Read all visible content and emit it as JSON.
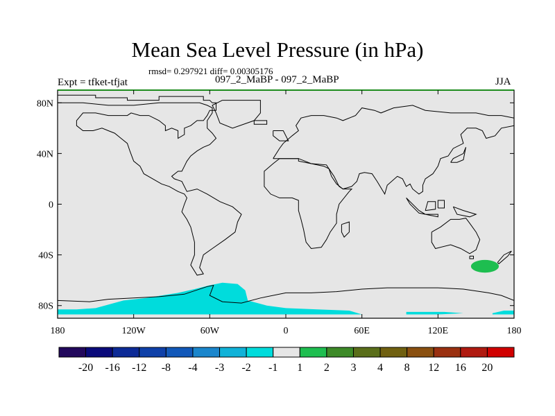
{
  "figure": {
    "title": "Mean Sea Level Pressure (in hPa)",
    "stats_line": "rmsd= 0.297921 diff= 0.00305176",
    "subtitle": "097_2_MaBP - 097_2_MaBP",
    "left_label": "Expt = tfket-tfjat",
    "right_label": "JJA"
  },
  "map": {
    "projection": "cylindrical equidistant",
    "lon_range": [
      -180,
      180
    ],
    "lat_range": [
      -90,
      90
    ],
    "background_color": "#e6e6e6",
    "coastline_color": "#000000",
    "frame_top_color": "#1e8c1e",
    "x_ticks": [
      {
        "value": -180,
        "label": "180"
      },
      {
        "value": -120,
        "label": "120W"
      },
      {
        "value": -60,
        "label": "60W"
      },
      {
        "value": 0,
        "label": "0"
      },
      {
        "value": 60,
        "label": "60E"
      },
      {
        "value": 120,
        "label": "120E"
      },
      {
        "value": 180,
        "label": "180"
      }
    ],
    "y_ticks": [
      {
        "value": 80,
        "label": "80N"
      },
      {
        "value": 40,
        "label": "40N"
      },
      {
        "value": 0,
        "label": "0"
      },
      {
        "value": -40,
        "label": "40S"
      },
      {
        "value": -80,
        "label": "80S"
      }
    ],
    "anomaly_regions": [
      {
        "name": "antarctic-low",
        "color": "#00dcdc",
        "class": "-2 to -1",
        "points": [
          [
            -180,
            -83
          ],
          [
            -165,
            -83
          ],
          [
            -150,
            -82
          ],
          [
            -128,
            -76
          ],
          [
            -110,
            -74
          ],
          [
            -85,
            -70
          ],
          [
            -72,
            -67
          ],
          [
            -60,
            -64
          ],
          [
            -50,
            -62
          ],
          [
            -38,
            -63
          ],
          [
            -32,
            -68
          ],
          [
            -30,
            -76
          ],
          [
            -15,
            -80
          ],
          [
            0,
            -82
          ],
          [
            25,
            -83
          ],
          [
            50,
            -84
          ],
          [
            60,
            -87
          ],
          [
            -180,
            -87
          ]
        ]
      },
      {
        "name": "antarctic-low-east",
        "color": "#00dcdc",
        "class": "-2 to -1",
        "points": [
          [
            95,
            -85
          ],
          [
            125,
            -85
          ],
          [
            140,
            -86
          ],
          [
            120,
            -87
          ],
          [
            95,
            -87
          ]
        ]
      },
      {
        "name": "antarctic-low-edge",
        "color": "#00dcdc",
        "class": "-2 to -1",
        "points": [
          [
            163,
            -86
          ],
          [
            172,
            -84
          ],
          [
            180,
            -84
          ],
          [
            180,
            -87
          ],
          [
            163,
            -87
          ]
        ]
      },
      {
        "name": "south-pacific-high",
        "color": "#1ebe50",
        "class": "1 to 2",
        "center": [
          157,
          -49
        ],
        "radius": [
          11,
          5
        ]
      }
    ],
    "coastlines": [
      [
        [
          -180,
          86
        ],
        [
          -150,
          86
        ],
        [
          -150,
          84
        ],
        [
          -125,
          84
        ],
        [
          -125,
          82
        ],
        [
          -100,
          82
        ],
        [
          -100,
          85
        ],
        [
          -65,
          85
        ],
        [
          -65,
          82
        ],
        [
          -60,
          82
        ],
        [
          -58,
          80
        ],
        [
          -55,
          80
        ],
        [
          -55,
          74
        ],
        [
          -60,
          74
        ],
        [
          -62,
          70
        ],
        [
          -65,
          66
        ],
        [
          -70,
          66
        ],
        [
          -75,
          62
        ],
        [
          -80,
          60
        ],
        [
          -80,
          55
        ],
        [
          -85,
          52
        ],
        [
          -85,
          58
        ],
        [
          -90,
          60
        ],
        [
          -95,
          58
        ],
        [
          -95,
          62
        ],
        [
          -100,
          66
        ],
        [
          -108,
          70
        ],
        [
          -115,
          70
        ],
        [
          -122,
          72
        ],
        [
          -125,
          70
        ],
        [
          -130,
          70
        ],
        [
          -140,
          70
        ],
        [
          -150,
          72
        ],
        [
          -160,
          72
        ],
        [
          -165,
          66
        ],
        [
          -165,
          62
        ],
        [
          -160,
          58
        ],
        [
          -152,
          58
        ],
        [
          -145,
          60
        ],
        [
          -140,
          58
        ],
        [
          -135,
          56
        ],
        [
          -130,
          52
        ],
        [
          -125,
          48
        ],
        [
          -123,
          42
        ],
        [
          -120,
          34
        ],
        [
          -115,
          30
        ],
        [
          -112,
          24
        ],
        [
          -105,
          20
        ],
        [
          -98,
          16
        ],
        [
          -92,
          14
        ],
        [
          -85,
          10
        ],
        [
          -80,
          8
        ],
        [
          -78,
          5
        ],
        [
          -80,
          0
        ],
        [
          -82,
          -6
        ],
        [
          -78,
          -12
        ],
        [
          -75,
          -18
        ],
        [
          -72,
          -30
        ],
        [
          -72,
          -40
        ],
        [
          -75,
          -48
        ],
        [
          -70,
          -56
        ],
        [
          -65,
          -55
        ],
        [
          -68,
          -50
        ],
        [
          -65,
          -40
        ],
        [
          -58,
          -35
        ],
        [
          -48,
          -28
        ],
        [
          -40,
          -22
        ],
        [
          -38,
          -14
        ],
        [
          -35,
          -8
        ],
        [
          -42,
          -2
        ],
        [
          -52,
          2
        ],
        [
          -62,
          8
        ],
        [
          -70,
          12
        ],
        [
          -78,
          10
        ],
        [
          -82,
          18
        ],
        [
          -88,
          20
        ],
        [
          -90,
          22
        ],
        [
          -85,
          26
        ],
        [
          -82,
          26
        ],
        [
          -80,
          30
        ],
        [
          -78,
          34
        ],
        [
          -75,
          38
        ],
        [
          -70,
          42
        ],
        [
          -65,
          45
        ],
        [
          -60,
          47
        ],
        [
          -55,
          52
        ],
        [
          -58,
          56
        ],
        [
          -62,
          60
        ],
        [
          -62,
          66
        ],
        [
          -58,
          72
        ],
        [
          -58,
          76
        ],
        [
          -62,
          78
        ],
        [
          -68,
          80
        ],
        [
          -100,
          80
        ],
        [
          -120,
          78
        ],
        [
          -140,
          78
        ],
        [
          -160,
          80
        ],
        [
          -180,
          80
        ]
      ],
      [
        [
          -50,
          82
        ],
        [
          -20,
          82
        ],
        [
          -20,
          72
        ],
        [
          -25,
          66
        ],
        [
          -42,
          60
        ],
        [
          -52,
          64
        ],
        [
          -55,
          72
        ],
        [
          -58,
          78
        ],
        [
          -50,
          82
        ]
      ],
      [
        [
          -25,
          66
        ],
        [
          -15,
          66
        ],
        [
          -15,
          63
        ],
        [
          -25,
          63
        ],
        [
          -25,
          66
        ]
      ],
      [
        [
          -10,
          58
        ],
        [
          -2,
          58
        ],
        [
          2,
          50
        ],
        [
          -5,
          50
        ],
        [
          -10,
          54
        ],
        [
          -10,
          58
        ]
      ],
      [
        [
          -10,
          36
        ],
        [
          -5,
          44
        ],
        [
          -2,
          48
        ],
        [
          5,
          54
        ],
        [
          10,
          58
        ],
        [
          8,
          62
        ],
        [
          12,
          68
        ],
        [
          20,
          70
        ],
        [
          30,
          70
        ],
        [
          40,
          68
        ],
        [
          45,
          66
        ],
        [
          55,
          70
        ],
        [
          60,
          76
        ],
        [
          70,
          74
        ],
        [
          75,
          72
        ],
        [
          85,
          76
        ],
        [
          100,
          78
        ],
        [
          110,
          74
        ],
        [
          130,
          72
        ],
        [
          150,
          72
        ],
        [
          160,
          70
        ],
        [
          170,
          70
        ],
        [
          180,
          68
        ],
        [
          180,
          62
        ],
        [
          170,
          60
        ],
        [
          165,
          54
        ],
        [
          158,
          52
        ],
        [
          155,
          58
        ],
        [
          150,
          60
        ],
        [
          143,
          60
        ],
        [
          138,
          55
        ],
        [
          140,
          48
        ],
        [
          132,
          44
        ],
        [
          128,
          38
        ],
        [
          122,
          36
        ],
        [
          120,
          30
        ],
        [
          116,
          24
        ],
        [
          110,
          20
        ],
        [
          108,
          15
        ],
        [
          108,
          10
        ],
        [
          105,
          8
        ],
        [
          100,
          12
        ],
        [
          98,
          16
        ],
        [
          95,
          14
        ],
        [
          92,
          20
        ],
        [
          88,
          22
        ],
        [
          80,
          15
        ],
        [
          78,
          8
        ],
        [
          72,
          18
        ],
        [
          68,
          24
        ],
        [
          62,
          25
        ],
        [
          58,
          24
        ],
        [
          56,
          18
        ],
        [
          52,
          14
        ],
        [
          45,
          12
        ],
        [
          42,
          14
        ],
        [
          38,
          22
        ],
        [
          34,
          28
        ],
        [
          30,
          30
        ],
        [
          20,
          32
        ],
        [
          10,
          34
        ],
        [
          10,
          36
        ],
        [
          0,
          36
        ],
        [
          -10,
          36
        ]
      ],
      [
        [
          -17,
          20
        ],
        [
          -17,
          14
        ],
        [
          -12,
          8
        ],
        [
          -5,
          5
        ],
        [
          5,
          5
        ],
        [
          10,
          3
        ],
        [
          10,
          -5
        ],
        [
          12,
          -12
        ],
        [
          14,
          -20
        ],
        [
          16,
          -30
        ],
        [
          20,
          -35
        ],
        [
          28,
          -34
        ],
        [
          32,
          -28
        ],
        [
          35,
          -22
        ],
        [
          40,
          -15
        ],
        [
          40,
          -8
        ],
        [
          42,
          0
        ],
        [
          50,
          10
        ],
        [
          52,
          12
        ],
        [
          45,
          12
        ],
        [
          40,
          16
        ],
        [
          36,
          22
        ],
        [
          34,
          28
        ],
        [
          32,
          31
        ],
        [
          20,
          32
        ],
        [
          10,
          36
        ],
        [
          -5,
          36
        ],
        [
          -10,
          32
        ],
        [
          -17,
          26
        ],
        [
          -17,
          20
        ]
      ],
      [
        [
          44,
          -16
        ],
        [
          50,
          -14
        ],
        [
          50,
          -22
        ],
        [
          46,
          -26
        ],
        [
          44,
          -22
        ],
        [
          44,
          -16
        ]
      ],
      [
        [
          95,
          5
        ],
        [
          105,
          -5
        ],
        [
          110,
          -8
        ],
        [
          120,
          -8
        ],
        [
          120,
          -10
        ],
        [
          105,
          -7
        ],
        [
          98,
          0
        ],
        [
          95,
          5
        ]
      ],
      [
        [
          110,
          -5
        ],
        [
          118,
          -4
        ],
        [
          118,
          2
        ],
        [
          112,
          2
        ],
        [
          110,
          -5
        ]
      ],
      [
        [
          120,
          -3
        ],
        [
          125,
          -3
        ],
        [
          125,
          3
        ],
        [
          120,
          3
        ],
        [
          120,
          -3
        ]
      ],
      [
        [
          132,
          -2
        ],
        [
          140,
          -5
        ],
        [
          150,
          -8
        ],
        [
          145,
          -10
        ],
        [
          135,
          -8
        ],
        [
          132,
          -2
        ]
      ],
      [
        [
          115,
          -22
        ],
        [
          122,
          -18
        ],
        [
          130,
          -12
        ],
        [
          137,
          -12
        ],
        [
          142,
          -11
        ],
        [
          145,
          -15
        ],
        [
          150,
          -22
        ],
        [
          153,
          -28
        ],
        [
          150,
          -36
        ],
        [
          145,
          -39
        ],
        [
          138,
          -35
        ],
        [
          130,
          -32
        ],
        [
          118,
          -35
        ],
        [
          115,
          -30
        ],
        [
          115,
          -22
        ]
      ],
      [
        [
          145,
          -41
        ],
        [
          148,
          -41
        ],
        [
          148,
          -43
        ],
        [
          145,
          -43
        ],
        [
          145,
          -41
        ]
      ],
      [
        [
          167,
          -46
        ],
        [
          172,
          -40
        ],
        [
          178,
          -37
        ],
        [
          175,
          -41
        ],
        [
          168,
          -47
        ],
        [
          167,
          -46
        ]
      ],
      [
        [
          130,
          33
        ],
        [
          132,
          36
        ],
        [
          140,
          40
        ],
        [
          142,
          45
        ],
        [
          140,
          35
        ],
        [
          135,
          33
        ],
        [
          130,
          33
        ]
      ],
      [
        [
          -180,
          -76
        ],
        [
          -155,
          -77
        ],
        [
          -140,
          -75
        ],
        [
          -120,
          -74
        ],
        [
          -100,
          -73
        ],
        [
          -80,
          -71
        ],
        [
          -62,
          -65
        ],
        [
          -57,
          -64
        ],
        [
          -60,
          -72
        ],
        [
          -50,
          -77
        ],
        [
          -35,
          -78
        ],
        [
          -20,
          -74
        ],
        [
          0,
          -70
        ],
        [
          20,
          -70
        ],
        [
          40,
          -69
        ],
        [
          60,
          -67
        ],
        [
          80,
          -66
        ],
        [
          100,
          -66
        ],
        [
          120,
          -66
        ],
        [
          140,
          -67
        ],
        [
          160,
          -70
        ],
        [
          170,
          -72
        ],
        [
          180,
          -76
        ]
      ]
    ],
    "land_mask_extra": [
      [
        [
          -65,
          -72
        ],
        [
          -55,
          -72
        ],
        [
          -55,
          -78
        ],
        [
          -65,
          -78
        ],
        [
          -65,
          -72
        ]
      ]
    ]
  },
  "colorbar": {
    "colors": [
      "#22085c",
      "#0a0a7a",
      "#0c2a96",
      "#0e40a8",
      "#1158b9",
      "#1a86cc",
      "#10b2d8",
      "#00dcdc",
      "#e6e6e6",
      "#1ebe50",
      "#3d8a28",
      "#5a6e1a",
      "#706010",
      "#8a5010",
      "#9a3010",
      "#b01a10",
      "#d00000"
    ],
    "labels": [
      "-20",
      "-16",
      "-12",
      "-8",
      "-4",
      "-3",
      "-2",
      "-1",
      "1",
      "2",
      "3",
      "4",
      "8",
      "12",
      "16",
      "20"
    ]
  }
}
